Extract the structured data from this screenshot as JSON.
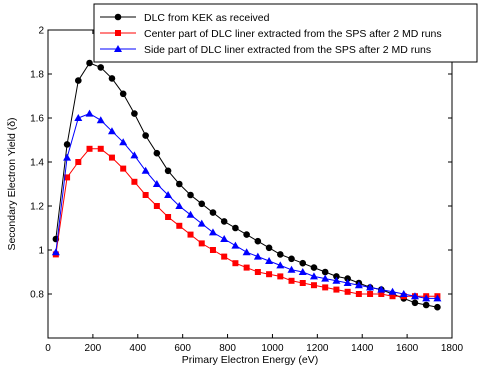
{
  "chart_data": {
    "type": "line",
    "xlabel": "Primary Electron Energy (eV)",
    "ylabel": "Secondary Electron Yield (δ)",
    "xlim": [
      0,
      1800
    ],
    "ylim": [
      0.6,
      2.0
    ],
    "xticks": [
      0,
      200,
      400,
      600,
      800,
      1000,
      1200,
      1400,
      1600,
      1800
    ],
    "yticks": [
      0.8,
      1.0,
      1.2,
      1.4,
      1.6,
      1.8,
      2.0
    ],
    "xtick_labels": [
      "0",
      "200",
      "400",
      "600",
      "800",
      "1000",
      "1200",
      "1400",
      "1600",
      "1800"
    ],
    "ytick_labels": [
      "0.8",
      "1",
      "1.2",
      "1.4",
      "1.6",
      "1.8",
      "2"
    ],
    "grid": false,
    "legend_position": "top-right",
    "series": [
      {
        "name": "DLC from KEK as received",
        "color": "#000000",
        "marker": "circle",
        "x": [
          35,
          85,
          135,
          185,
          235,
          285,
          335,
          385,
          435,
          485,
          535,
          585,
          635,
          685,
          735,
          785,
          835,
          885,
          935,
          985,
          1035,
          1085,
          1135,
          1185,
          1235,
          1285,
          1335,
          1385,
          1435,
          1485,
          1535,
          1585,
          1635,
          1685,
          1735
        ],
        "y": [
          1.05,
          1.48,
          1.77,
          1.85,
          1.83,
          1.78,
          1.71,
          1.62,
          1.52,
          1.44,
          1.36,
          1.3,
          1.25,
          1.21,
          1.17,
          1.13,
          1.1,
          1.07,
          1.04,
          1.01,
          0.98,
          0.96,
          0.94,
          0.92,
          0.9,
          0.88,
          0.87,
          0.85,
          0.83,
          0.82,
          0.8,
          0.78,
          0.76,
          0.75,
          0.74
        ]
      },
      {
        "name": "Center part of DLC liner extracted from the SPS after 2 MD runs",
        "color": "#ff0000",
        "marker": "square",
        "x": [
          35,
          85,
          135,
          185,
          235,
          285,
          335,
          385,
          435,
          485,
          535,
          585,
          635,
          685,
          735,
          785,
          835,
          885,
          935,
          985,
          1035,
          1085,
          1135,
          1185,
          1235,
          1285,
          1335,
          1385,
          1435,
          1485,
          1535,
          1585,
          1635,
          1685,
          1735
        ],
        "y": [
          0.98,
          1.33,
          1.4,
          1.46,
          1.46,
          1.42,
          1.37,
          1.31,
          1.25,
          1.2,
          1.15,
          1.11,
          1.07,
          1.03,
          1.0,
          0.97,
          0.94,
          0.92,
          0.9,
          0.89,
          0.88,
          0.86,
          0.85,
          0.84,
          0.83,
          0.82,
          0.81,
          0.8,
          0.8,
          0.8,
          0.79,
          0.79,
          0.79,
          0.79,
          0.79
        ]
      },
      {
        "name": "Side part of DLC liner extracted from the SPS after 2 MD runs",
        "color": "#0000ff",
        "marker": "triangle",
        "x": [
          35,
          85,
          135,
          185,
          235,
          285,
          335,
          385,
          435,
          485,
          535,
          585,
          635,
          685,
          735,
          785,
          835,
          885,
          935,
          985,
          1035,
          1085,
          1135,
          1185,
          1235,
          1285,
          1335,
          1385,
          1435,
          1485,
          1535,
          1585,
          1635,
          1685,
          1735
        ],
        "y": [
          0.99,
          1.42,
          1.6,
          1.62,
          1.59,
          1.54,
          1.49,
          1.43,
          1.36,
          1.3,
          1.25,
          1.2,
          1.16,
          1.12,
          1.08,
          1.05,
          1.02,
          0.99,
          0.97,
          0.95,
          0.93,
          0.91,
          0.9,
          0.88,
          0.87,
          0.86,
          0.85,
          0.84,
          0.83,
          0.82,
          0.81,
          0.8,
          0.79,
          0.78,
          0.78
        ]
      }
    ]
  }
}
